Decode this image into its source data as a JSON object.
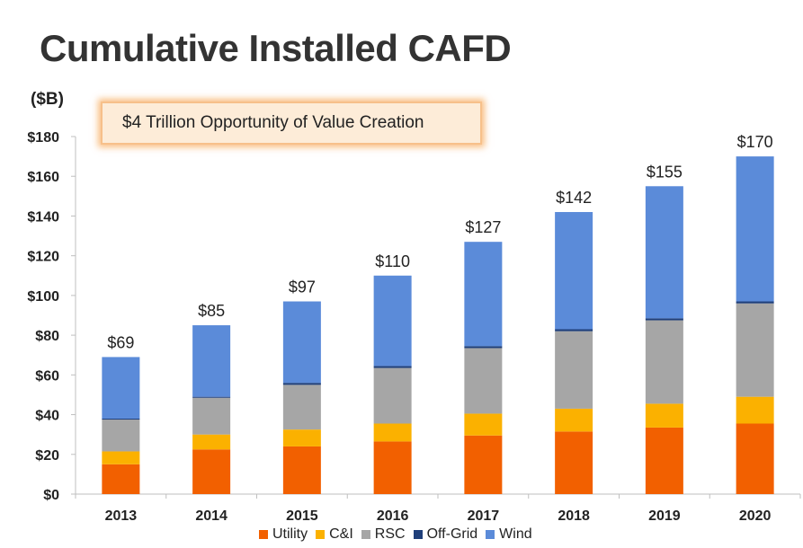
{
  "title": "Cumulative Installed CAFD",
  "unit_label": "($B)",
  "callout": "$4 Trillion Opportunity of Value Creation",
  "chart_data": {
    "type": "bar",
    "stacked": true,
    "categories": [
      "2013",
      "2014",
      "2015",
      "2016",
      "2017",
      "2018",
      "2019",
      "2020"
    ],
    "series": [
      {
        "name": "Utility",
        "color": "#f26000",
        "values": [
          15,
          22.5,
          24,
          26.5,
          29.5,
          31.5,
          33.5,
          35.5
        ]
      },
      {
        "name": "C&I",
        "color": "#fbb100",
        "values": [
          6.5,
          7.5,
          8.5,
          9,
          11,
          11.5,
          12,
          13.5
        ]
      },
      {
        "name": "RSC",
        "color": "#a6a6a6",
        "values": [
          16,
          18.5,
          22.5,
          28,
          33,
          39,
          42,
          47
        ]
      },
      {
        "name": "Off-Grid",
        "color": "#1f3f7a",
        "values": [
          0.5,
          0.5,
          1,
          1,
          1,
          1,
          1,
          1
        ]
      },
      {
        "name": "Wind",
        "color": "#5b8bd9",
        "values": [
          31,
          36,
          41,
          45.5,
          52.5,
          59,
          66.5,
          73
        ]
      }
    ],
    "totals": [
      "$69",
      "$85",
      "$97",
      "$110",
      "$127",
      "$142",
      "$155",
      "$170"
    ],
    "y_ticks": [
      "$0",
      "$20",
      "$40",
      "$60",
      "$80",
      "$100",
      "$120",
      "$140",
      "$160",
      "$180"
    ],
    "ylim": [
      0,
      180
    ],
    "ylabel": "($B)",
    "legend_position": "bottom",
    "grid": false
  }
}
